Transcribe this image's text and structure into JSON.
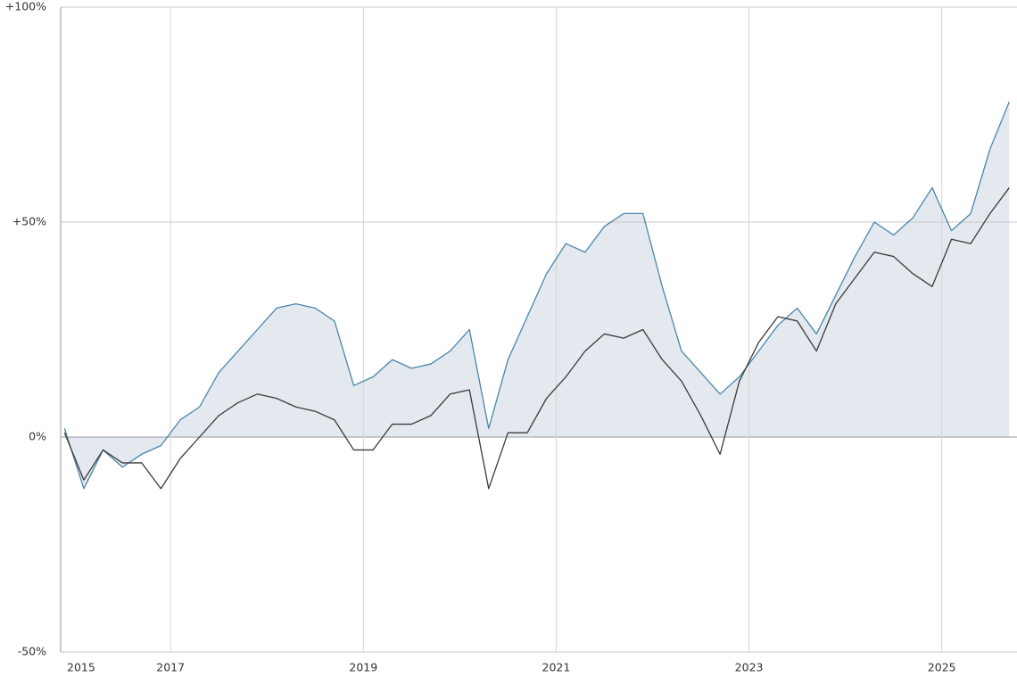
{
  "chart_data": {
    "type": "line",
    "x": [
      2015.9,
      2016.1,
      2016.3,
      2016.5,
      2016.7,
      2016.9,
      2017.1,
      2017.3,
      2017.5,
      2017.7,
      2017.9,
      2018.1,
      2018.3,
      2018.5,
      2018.7,
      2018.9,
      2019.1,
      2019.3,
      2019.5,
      2019.7,
      2019.9,
      2020.1,
      2020.3,
      2020.5,
      2020.7,
      2020.9,
      2021.1,
      2021.3,
      2021.5,
      2021.7,
      2021.9,
      2022.1,
      2022.3,
      2022.5,
      2022.7,
      2022.9,
      2023.1,
      2023.3,
      2023.5,
      2023.7,
      2023.9,
      2024.1,
      2024.3,
      2024.5,
      2024.7,
      2024.9,
      2025.1,
      2025.3,
      2025.5,
      2025.7
    ],
    "series": [
      {
        "color": "#4a86ad",
        "fill": "#e3e9ee",
        "values": [
          2,
          -12,
          -3,
          -7,
          -4,
          -2,
          4,
          7,
          15,
          20,
          25,
          30,
          31,
          30,
          27,
          12,
          14,
          18,
          16,
          17,
          20,
          25,
          2,
          18,
          28,
          38,
          45,
          43,
          49,
          52,
          52,
          35,
          20,
          15,
          10,
          14,
          20,
          26,
          30,
          24,
          33,
          42,
          50,
          47,
          51,
          58,
          48,
          52,
          67,
          78
        ]
      },
      {
        "color": "#3d3a37",
        "values": [
          1,
          -10,
          -3,
          -6,
          -6,
          -12,
          -5,
          0,
          5,
          8,
          10,
          9,
          7,
          6,
          4,
          -3,
          -3,
          3,
          3,
          5,
          10,
          11,
          -12,
          1,
          1,
          9,
          14,
          20,
          24,
          23,
          25,
          18,
          13,
          5,
          -4,
          13,
          22,
          28,
          27,
          20,
          31,
          37,
          43,
          42,
          38,
          35,
          46,
          45,
          52,
          58
        ]
      }
    ],
    "xlim": [
      2015.86,
      2025.78
    ],
    "xticks": [
      {
        "value": 2015.86,
        "label": "2015"
      },
      2017,
      2019,
      2021,
      2023,
      2025
    ],
    "ylim": [
      -50,
      100
    ],
    "yticks": [
      {
        "value": -50,
        "label": "-50%"
      },
      {
        "value": 0,
        "label": "0%"
      },
      {
        "value": 50,
        "label": "+50%"
      },
      {
        "value": 100,
        "label": "+100%"
      }
    ],
    "grid": true
  }
}
